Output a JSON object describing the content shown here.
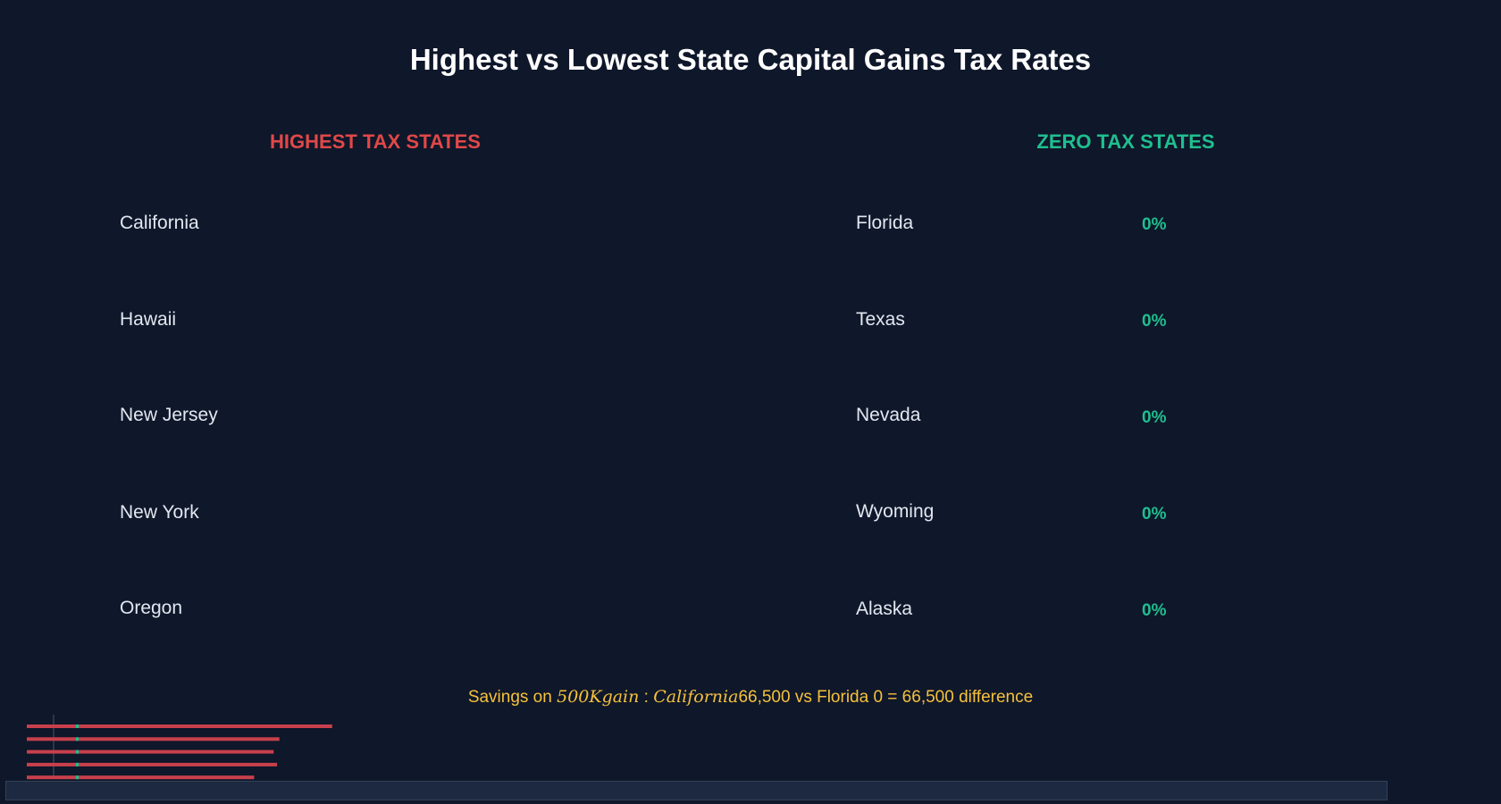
{
  "title": "Highest vs Lowest State Capital Gains Tax Rates",
  "colors": {
    "background": "#0f172a",
    "high": "#e04848",
    "zero": "#1fbf8f",
    "highlight": "#f5c13b",
    "bar": "#c8404c",
    "baseline": "#475569"
  },
  "highest": {
    "header": "HIGHEST TAX STATES",
    "states": [
      "California",
      "Hawaii",
      "New Jersey",
      "New York",
      "Oregon"
    ]
  },
  "zero": {
    "header": "ZERO TAX STATES",
    "states": [
      "Florida",
      "Texas",
      "Nevada",
      "Wyoming",
      "Alaska"
    ],
    "rates": [
      "0%",
      "0%",
      "0%",
      "0%",
      "0%"
    ]
  },
  "savings": {
    "prefix": "Savings on ",
    "math1": "500Kgain",
    "sep": " : ",
    "math2": "California",
    "suffix": "66,500 vs Florida 0 = 66,500 difference"
  },
  "chart_data": {
    "type": "bar",
    "orientation": "horizontal",
    "categories": [
      "California",
      "Hawaii",
      "New Jersey",
      "New York",
      "Oregon"
    ],
    "values": [
      13.3,
      11.0,
      10.75,
      10.9,
      9.9
    ],
    "series_zero": [
      0,
      0,
      0,
      0,
      0
    ]
  }
}
